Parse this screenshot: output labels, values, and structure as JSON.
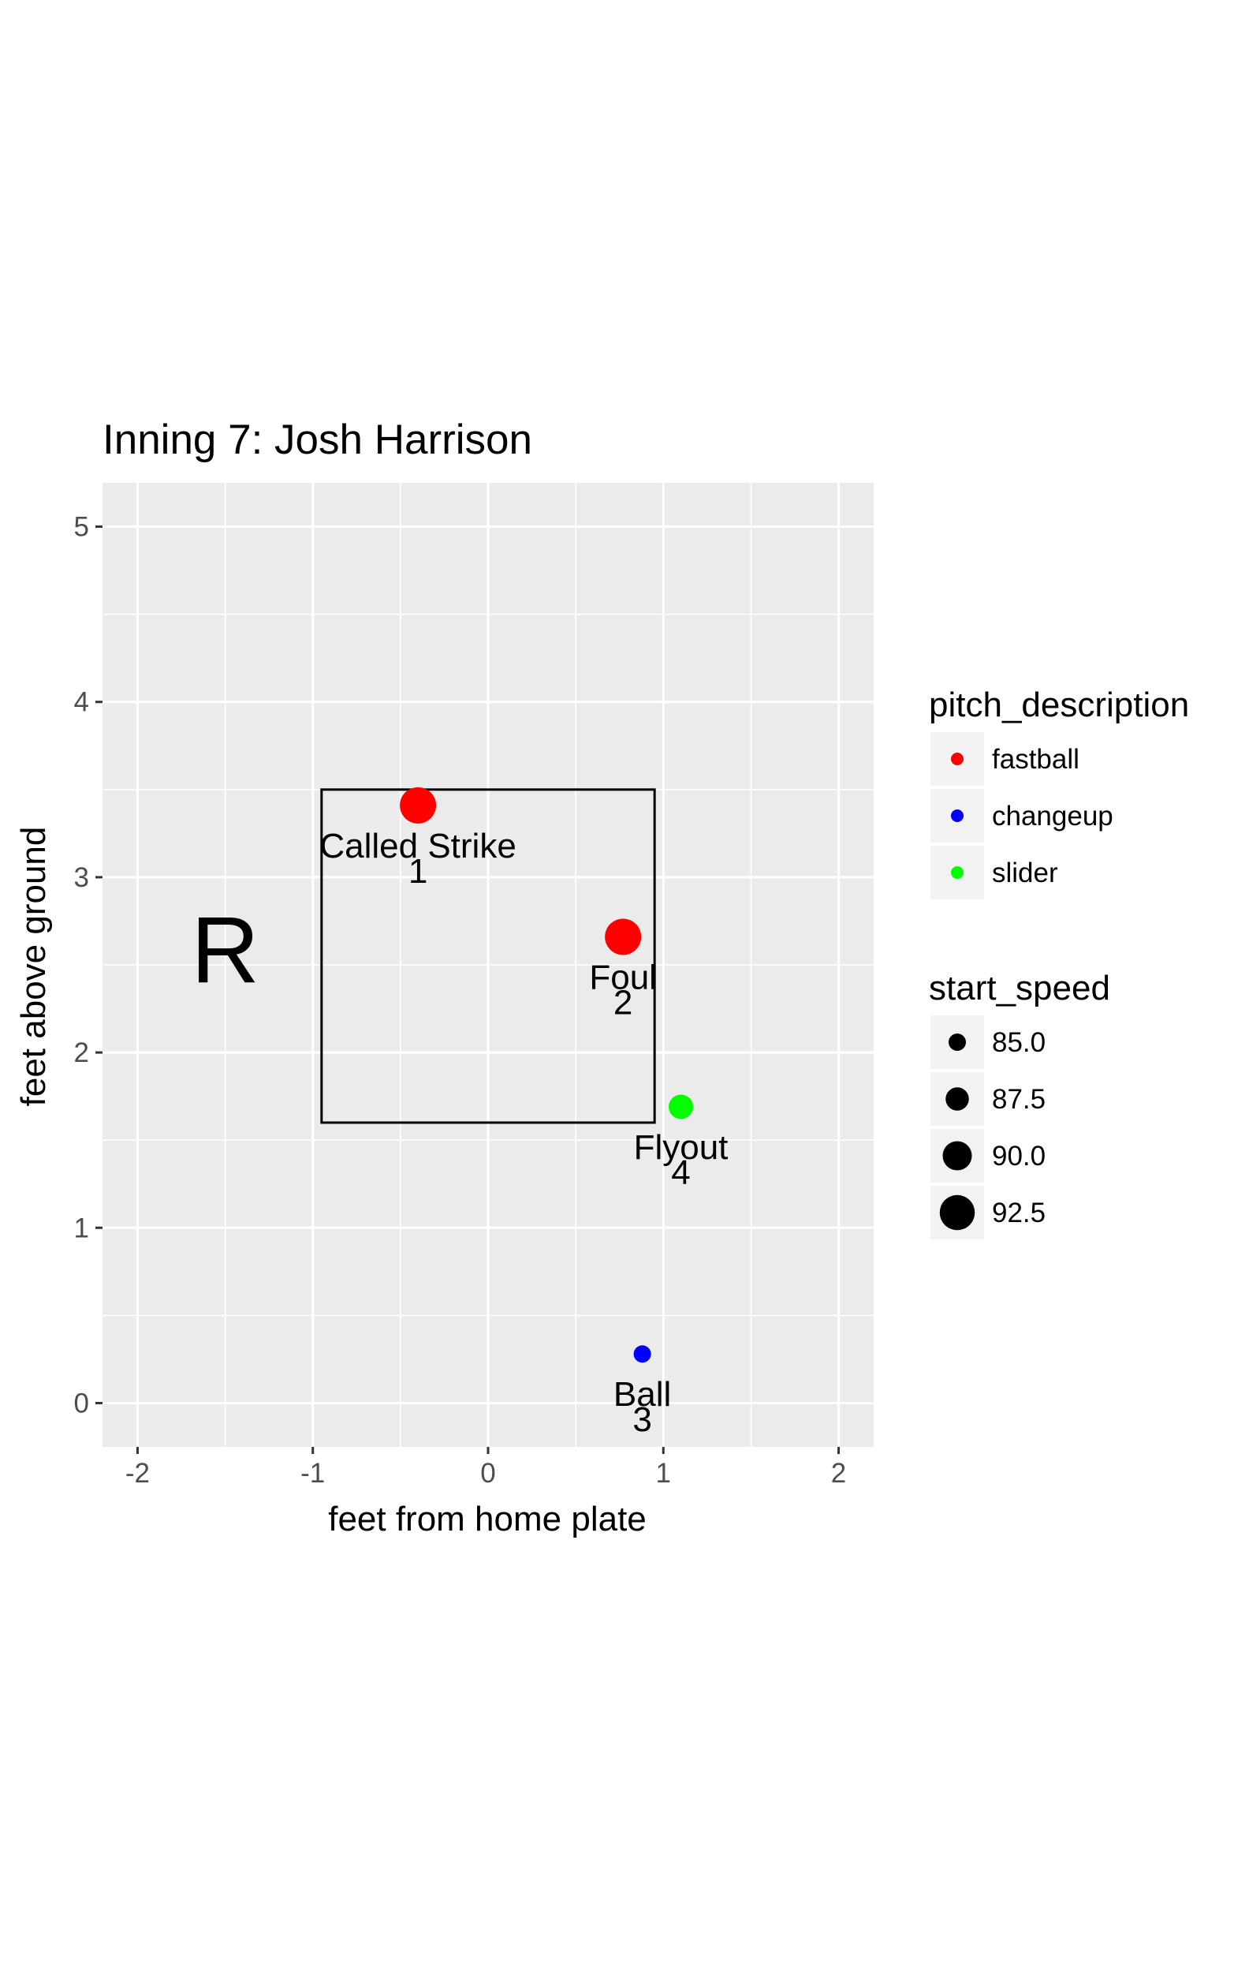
{
  "chart_data": {
    "type": "scatter",
    "title": "Inning 7: Josh Harrison",
    "xlabel": "feet from home plate",
    "ylabel": "feet above ground",
    "xlim": [
      -2.2,
      2.2
    ],
    "ylim": [
      -0.25,
      5.25
    ],
    "x_ticks": [
      -2,
      -1,
      0,
      1,
      2
    ],
    "y_ticks": [
      0,
      1,
      2,
      3,
      4,
      5
    ],
    "x_tick_labels": [
      "-2",
      "-1",
      "0",
      "1",
      "2"
    ],
    "y_tick_labels": [
      "0",
      "1",
      "2",
      "3",
      "4",
      "5"
    ],
    "grid": true,
    "batter_side": "R",
    "batter_side_position": {
      "x": -1.5,
      "y": 2.4
    },
    "strike_zone": {
      "x_min": -0.95,
      "x_max": 0.95,
      "y_min": 1.6,
      "y_max": 3.5
    },
    "pitches": [
      {
        "pitch_number": "1",
        "description": "Called Strike",
        "pitch_type": "fastball",
        "x": -0.4,
        "y": 3.41,
        "start_speed": 93.0
      },
      {
        "pitch_number": "2",
        "description": "Foul",
        "pitch_type": "fastball",
        "x": 0.77,
        "y": 2.66,
        "start_speed": 93.0
      },
      {
        "pitch_number": "3",
        "description": "Ball",
        "pitch_type": "changeup",
        "x": 0.88,
        "y": 0.28,
        "start_speed": 85.0
      },
      {
        "pitch_number": "4",
        "description": "Flyout",
        "pitch_type": "slider",
        "x": 1.1,
        "y": 1.69,
        "start_speed": 88.0
      }
    ],
    "legend_color": {
      "title": "pitch_description",
      "items": [
        {
          "label": "fastball",
          "color": "#ff0000"
        },
        {
          "label": "changeup",
          "color": "#0000ff"
        },
        {
          "label": "slider",
          "color": "#00ff00"
        }
      ]
    },
    "legend_size": {
      "title": "start_speed",
      "items": [
        {
          "label": "85.0",
          "value": 85.0
        },
        {
          "label": "87.5",
          "value": 87.5
        },
        {
          "label": "90.0",
          "value": 90.0
        },
        {
          "label": "92.5",
          "value": 92.5
        }
      ]
    },
    "legend_placement": "right",
    "colors": {
      "panel_background": "#ebebeb",
      "grid_line": "#ffffff",
      "fastball": "#ff0000",
      "changeup": "#0000ff",
      "slider": "#00ff00",
      "legend_key_background": "#f2f2f2"
    }
  }
}
